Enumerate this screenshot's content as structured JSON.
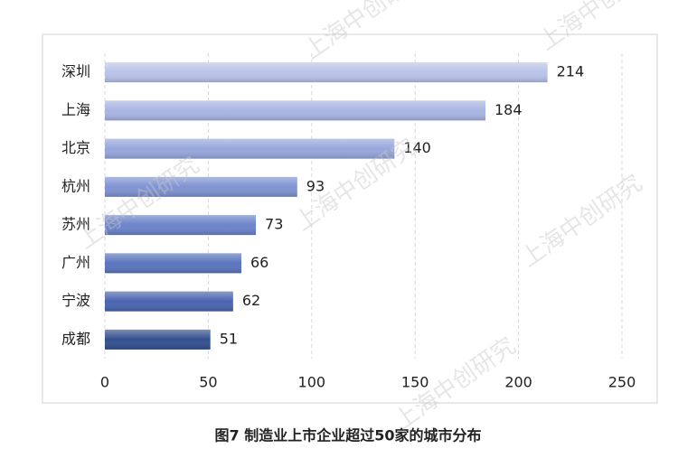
{
  "chart_data": {
    "type": "bar",
    "orientation": "horizontal",
    "title": "图7  制造业上市企业超过50家的城市分布",
    "watermark": "上海中创研究",
    "categories": [
      "深圳",
      "上海",
      "北京",
      "杭州",
      "苏州",
      "广州",
      "宁波",
      "成都"
    ],
    "values": [
      214,
      184,
      140,
      93,
      73,
      66,
      62,
      51
    ],
    "colors": [
      "#b9c3e8",
      "#a9b5e2",
      "#97a7dc",
      "#7f93d2",
      "#6b83c9",
      "#5a74be",
      "#4a64b0",
      "#34508f"
    ],
    "xlim": [
      0,
      250
    ],
    "xticks": [
      0,
      50,
      100,
      150,
      200,
      250
    ],
    "grid": true
  }
}
